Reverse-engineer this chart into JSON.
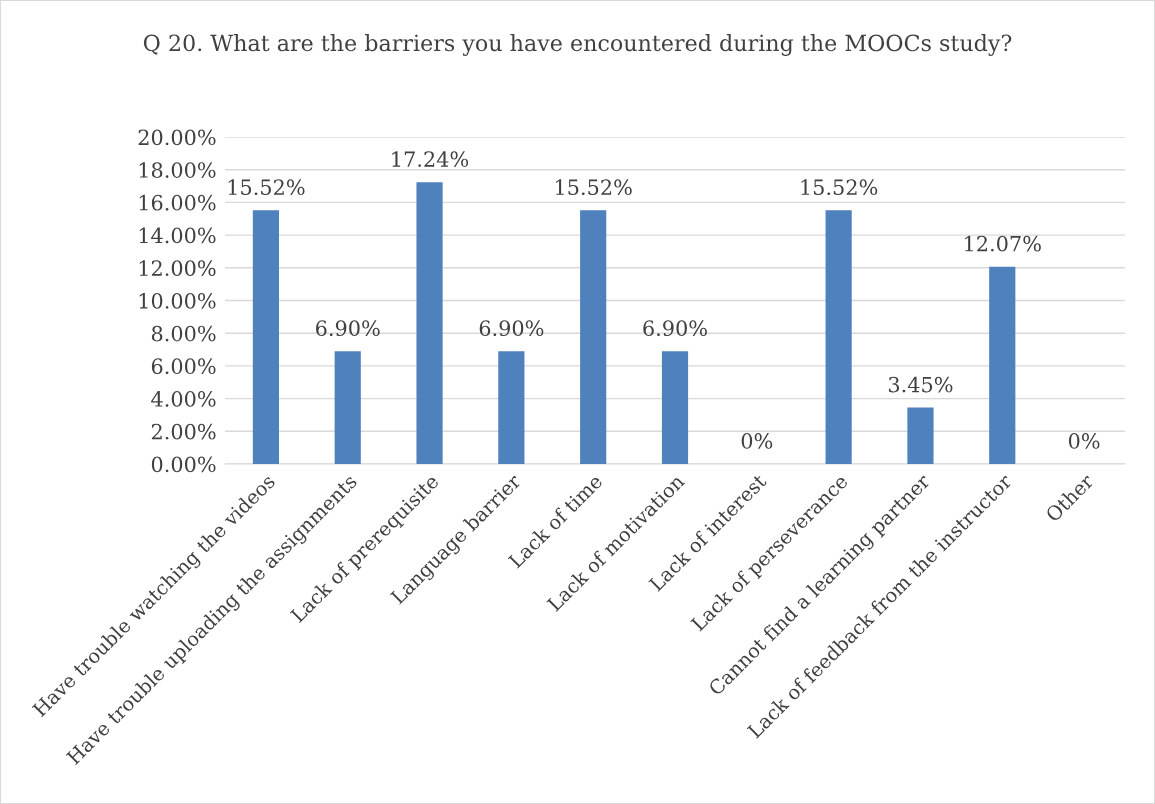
{
  "chart_data": {
    "type": "bar",
    "title": "Q 20. What are the barriers you have encountered during the MOOCs study?",
    "categories": [
      "Have trouble watching the videos",
      "Have trouble uploading the assignments",
      "Lack of prerequisite",
      "Language barrier",
      "Lack of time",
      "Lack of motivation",
      "Lack of interest",
      "Lack of perseverance",
      "Cannot find a learning partner",
      "Lack of feedback from the instructor",
      "Other"
    ],
    "values": [
      15.52,
      6.9,
      17.24,
      6.9,
      15.52,
      6.9,
      0,
      15.52,
      3.45,
      12.07,
      0
    ],
    "value_labels": [
      "15.52%",
      "6.90%",
      "17.24%",
      "6.90%",
      "15.52%",
      "6.90%",
      "0%",
      "15.52%",
      "3.45%",
      "12.07%",
      "0%"
    ],
    "color": "#4f81bd",
    "ylim": [
      0,
      20
    ],
    "yticks": [
      {
        "value": 0,
        "label": "0.00%"
      },
      {
        "value": 2,
        "label": "2.00%"
      },
      {
        "value": 4,
        "label": "4.00%"
      },
      {
        "value": 6,
        "label": "6.00%"
      },
      {
        "value": 8,
        "label": "8.00%"
      },
      {
        "value": 10,
        "label": "10.00%"
      },
      {
        "value": 12,
        "label": "12.00%"
      },
      {
        "value": 14,
        "label": "14.00%"
      },
      {
        "value": 16,
        "label": "16.00%"
      },
      {
        "value": 18,
        "label": "18.00%"
      },
      {
        "value": 20,
        "label": "20.00%"
      }
    ],
    "grid": "y",
    "legend": false
  }
}
